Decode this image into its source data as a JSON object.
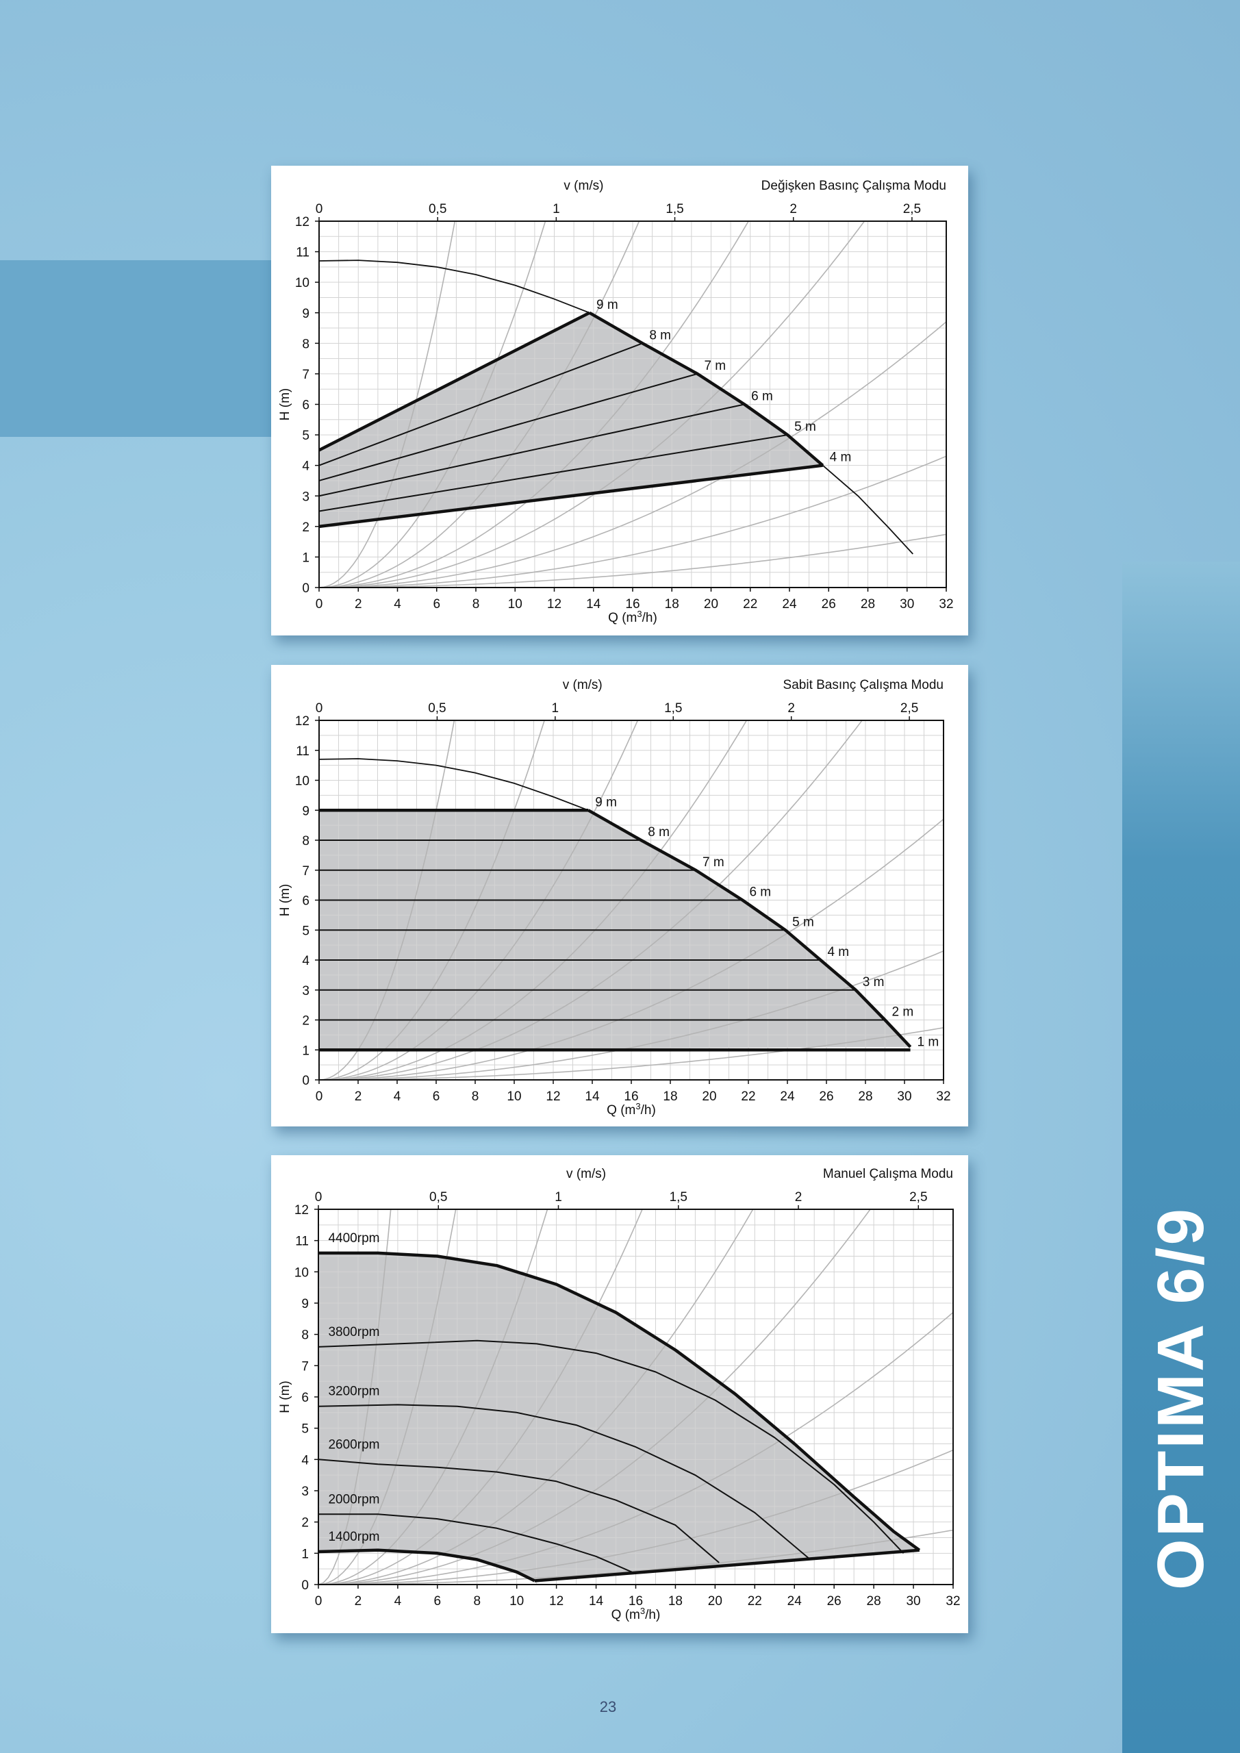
{
  "brand": "OPTIMA 6/9",
  "page_number": "23",
  "colors": {
    "fill": "#c8c9cb",
    "grid": "#d3d3d3",
    "curve": "#111111",
    "system_curve": "#b4b4b4",
    "band_right": "#3f8ab4"
  },
  "chart_data": [
    {
      "type": "line",
      "title": "Değişken Basınç Çalışma Modu",
      "xlabel": "Q (m³/h)",
      "ylabel": "H (m)",
      "x2label": "v (m/s)",
      "xlim": [
        0,
        32
      ],
      "ylim": [
        0,
        12
      ],
      "xticks": [
        "0",
        "2",
        "4",
        "6",
        "8",
        "10",
        "12",
        "14",
        "16",
        "18",
        "20",
        "22",
        "24",
        "26",
        "28",
        "30",
        "32"
      ],
      "yticks": [
        "0",
        "1",
        "2",
        "3",
        "4",
        "5",
        "6",
        "7",
        "8",
        "9",
        "10",
        "11",
        "12"
      ],
      "x2ticks": [
        {
          "label": "0",
          "q": 0
        },
        {
          "label": "0,5",
          "q": 6.05
        },
        {
          "label": "1",
          "q": 12.1
        },
        {
          "label": "1,5",
          "q": 18.15
        },
        {
          "label": "2",
          "q": 24.2
        },
        {
          "label": "2,5",
          "q": 30.25
        }
      ],
      "grid": true,
      "max_curve": [
        [
          0,
          10.7
        ],
        [
          2,
          10.72
        ],
        [
          4,
          10.65
        ],
        [
          6,
          10.5
        ],
        [
          8,
          10.25
        ],
        [
          10,
          9.9
        ],
        [
          12,
          9.45
        ],
        [
          13.8,
          9
        ],
        [
          16.5,
          8
        ],
        [
          19.3,
          7
        ],
        [
          21.7,
          6
        ],
        [
          23.9,
          5
        ],
        [
          25.7,
          4
        ],
        [
          27.5,
          3
        ],
        [
          29,
          2
        ],
        [
          30.3,
          1.1
        ]
      ],
      "control_lines": [
        {
          "label": "9 m",
          "h0": 4.5,
          "q1": 13.8,
          "h1": 9
        },
        {
          "label": "8 m",
          "h0": 4,
          "q1": 16.5,
          "h1": 8
        },
        {
          "label": "7 m",
          "h0": 3.5,
          "q1": 19.3,
          "h1": 7
        },
        {
          "label": "6 m",
          "h0": 3,
          "q1": 21.7,
          "h1": 6
        },
        {
          "label": "5 m",
          "h0": 2.5,
          "q1": 23.9,
          "h1": 5
        },
        {
          "label": "4 m",
          "h0": 2,
          "q1": 25.7,
          "h1": 4
        }
      ],
      "system_curve_k": [
        0.25,
        0.09,
        0.045,
        0.025,
        0.0155,
        0.0085,
        0.0042,
        0.0017
      ]
    },
    {
      "type": "line",
      "title": "Sabit Basınç Çalışma Modu",
      "xlabel": "Q (m³/h)",
      "ylabel": "H (m)",
      "x2label": "v (m/s)",
      "xlim": [
        0,
        32
      ],
      "ylim": [
        0,
        12
      ],
      "xticks": [
        "0",
        "2",
        "4",
        "6",
        "8",
        "10",
        "12",
        "14",
        "16",
        "18",
        "20",
        "22",
        "24",
        "26",
        "28",
        "30",
        "32"
      ],
      "yticks": [
        "0",
        "1",
        "2",
        "3",
        "4",
        "5",
        "6",
        "7",
        "8",
        "9",
        "10",
        "11",
        "12"
      ],
      "x2ticks": [
        {
          "label": "0",
          "q": 0
        },
        {
          "label": "0,5",
          "q": 6.05
        },
        {
          "label": "1",
          "q": 12.1
        },
        {
          "label": "1,5",
          "q": 18.15
        },
        {
          "label": "2",
          "q": 24.2
        },
        {
          "label": "2,5",
          "q": 30.25
        }
      ],
      "grid": true,
      "max_curve": [
        [
          0,
          10.7
        ],
        [
          2,
          10.72
        ],
        [
          4,
          10.65
        ],
        [
          6,
          10.5
        ],
        [
          8,
          10.25
        ],
        [
          10,
          9.9
        ],
        [
          12,
          9.45
        ],
        [
          13.8,
          9
        ],
        [
          16.5,
          8
        ],
        [
          19.3,
          7
        ],
        [
          21.7,
          6
        ],
        [
          23.9,
          5
        ],
        [
          25.7,
          4
        ],
        [
          27.5,
          3
        ],
        [
          29,
          2
        ],
        [
          30.3,
          1.1
        ]
      ],
      "control_lines": [
        {
          "label": "9 m",
          "h0": 9,
          "q1": 13.8,
          "h1": 9
        },
        {
          "label": "8 m",
          "h0": 8,
          "q1": 16.5,
          "h1": 8
        },
        {
          "label": "7 m",
          "h0": 7,
          "q1": 19.3,
          "h1": 7
        },
        {
          "label": "6 m",
          "h0": 6,
          "q1": 21.7,
          "h1": 6
        },
        {
          "label": "5 m",
          "h0": 5,
          "q1": 23.9,
          "h1": 5
        },
        {
          "label": "4 m",
          "h0": 4,
          "q1": 25.7,
          "h1": 4
        },
        {
          "label": "3 m",
          "h0": 3,
          "q1": 27.5,
          "h1": 3
        },
        {
          "label": "2 m",
          "h0": 2,
          "q1": 29,
          "h1": 2
        },
        {
          "label": "1 m",
          "h0": 1,
          "q1": 30.3,
          "h1": 1
        }
      ],
      "system_curve_k": [
        0.25,
        0.09,
        0.045,
        0.025,
        0.0155,
        0.0085,
        0.0042,
        0.0017
      ]
    },
    {
      "type": "line",
      "title": "Manuel Çalışma Modu",
      "xlabel": "Q (m³/h)",
      "ylabel": "H (m)",
      "x2label": "v (m/s)",
      "xlim": [
        0,
        32
      ],
      "ylim": [
        0,
        12
      ],
      "xticks": [
        "0",
        "2",
        "4",
        "6",
        "8",
        "10",
        "12",
        "14",
        "16",
        "18",
        "20",
        "22",
        "24",
        "26",
        "28",
        "30",
        "32"
      ],
      "yticks": [
        "0",
        "1",
        "2",
        "3",
        "4",
        "5",
        "6",
        "7",
        "8",
        "9",
        "10",
        "11",
        "12"
      ],
      "x2ticks": [
        {
          "label": "0",
          "q": 0
        },
        {
          "label": "0,5",
          "q": 6.05
        },
        {
          "label": "1",
          "q": 12.1
        },
        {
          "label": "1,5",
          "q": 18.15
        },
        {
          "label": "2",
          "q": 24.2
        },
        {
          "label": "2,5",
          "q": 30.25
        }
      ],
      "grid": true,
      "series": [
        {
          "name": "4400rpm",
          "values": [
            [
              0,
              10.6
            ],
            [
              3,
              10.6
            ],
            [
              6,
              10.5
            ],
            [
              9,
              10.2
            ],
            [
              12,
              9.6
            ],
            [
              15,
              8.7
            ],
            [
              18,
              7.5
            ],
            [
              21,
              6.1
            ],
            [
              24,
              4.5
            ],
            [
              27,
              2.8
            ],
            [
              29,
              1.7
            ],
            [
              30.3,
              1.1
            ]
          ]
        },
        {
          "name": "3800rpm",
          "values": [
            [
              0,
              7.6
            ],
            [
              4,
              7.7
            ],
            [
              8,
              7.8
            ],
            [
              11,
              7.7
            ],
            [
              14,
              7.4
            ],
            [
              17,
              6.8
            ],
            [
              20,
              5.9
            ],
            [
              23,
              4.7
            ],
            [
              26,
              3.2
            ],
            [
              28,
              2
            ],
            [
              29.5,
              1
            ]
          ]
        },
        {
          "name": "3200rpm",
          "values": [
            [
              0,
              5.7
            ],
            [
              4,
              5.75
            ],
            [
              7,
              5.7
            ],
            [
              10,
              5.5
            ],
            [
              13,
              5.1
            ],
            [
              16,
              4.4
            ],
            [
              19,
              3.5
            ],
            [
              22,
              2.3
            ],
            [
              24.8,
              0.8
            ]
          ]
        },
        {
          "name": "2600rpm",
          "values": [
            [
              0,
              4
            ],
            [
              3,
              3.85
            ],
            [
              6,
              3.75
            ],
            [
              9,
              3.6
            ],
            [
              12,
              3.3
            ],
            [
              15,
              2.7
            ],
            [
              18,
              1.9
            ],
            [
              20.2,
              0.7
            ]
          ]
        },
        {
          "name": "2000rpm",
          "values": [
            [
              0,
              2.25
            ],
            [
              3,
              2.25
            ],
            [
              6,
              2.1
            ],
            [
              9,
              1.8
            ],
            [
              12,
              1.3
            ],
            [
              14,
              0.9
            ],
            [
              15.8,
              0.4
            ]
          ]
        },
        {
          "name": "1400rpm",
          "values": [
            [
              0,
              1.05
            ],
            [
              3,
              1.1
            ],
            [
              6,
              1
            ],
            [
              8,
              0.8
            ],
            [
              10,
              0.4
            ],
            [
              10.9,
              0.12
            ]
          ]
        }
      ],
      "bottom_boundary": [
        [
          10.9,
          0.12
        ],
        [
          30.3,
          1.1
        ]
      ],
      "system_curve_k": [
        0.9,
        0.25,
        0.09,
        0.045,
        0.025,
        0.0155,
        0.0085,
        0.0042,
        0.0017
      ]
    }
  ]
}
